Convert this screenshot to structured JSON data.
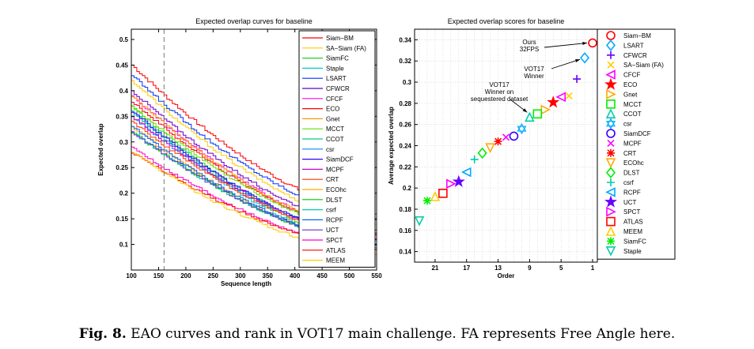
{
  "chart_data": [
    {
      "type": "line",
      "title": "Expected overlap curves for baseline",
      "xlabel": "Sequence length",
      "ylabel": "Expected overlap",
      "xlim": [
        100,
        550
      ],
      "ylim": [
        0.05,
        0.52
      ],
      "xticks": [
        100,
        150,
        200,
        250,
        300,
        350,
        400,
        450,
        500,
        550
      ],
      "yticks": [
        0.1,
        0.15,
        0.2,
        0.25,
        0.3,
        0.35,
        0.4,
        0.45,
        0.5
      ],
      "vline": 160,
      "legend_position": "top-right",
      "series": [
        {
          "name": "Siam−BM",
          "color": "#ff0000",
          "start": 0.45,
          "end": 0.16
        },
        {
          "name": "SA−Siam (FA)",
          "color": "#ffcc00",
          "start": 0.42,
          "end": 0.14
        },
        {
          "name": "SiamFC",
          "color": "#22cc22",
          "start": 0.37,
          "end": 0.1
        },
        {
          "name": "Staple",
          "color": "#00cccc",
          "start": 0.36,
          "end": 0.095
        },
        {
          "name": "LSART",
          "color": "#0033ff",
          "start": 0.43,
          "end": 0.15
        },
        {
          "name": "CFWCR",
          "color": "#6600cc",
          "start": 0.4,
          "end": 0.13
        },
        {
          "name": "CFCF",
          "color": "#ff00ff",
          "start": 0.39,
          "end": 0.12
        },
        {
          "name": "ECO",
          "color": "#ff0000",
          "start": 0.38,
          "end": 0.12
        },
        {
          "name": "Gnet",
          "color": "#ff9900",
          "start": 0.39,
          "end": 0.12
        },
        {
          "name": "MCCT",
          "color": "#66dd00",
          "start": 0.37,
          "end": 0.12
        },
        {
          "name": "CCOT",
          "color": "#00cc88",
          "start": 0.36,
          "end": 0.11
        },
        {
          "name": "csr",
          "color": "#0088ff",
          "start": 0.35,
          "end": 0.11
        },
        {
          "name": "SiamDCF",
          "color": "#3300ff",
          "start": 0.36,
          "end": 0.11
        },
        {
          "name": "MCPF",
          "color": "#cc00cc",
          "start": 0.35,
          "end": 0.11
        },
        {
          "name": "CRT",
          "color": "#ff3300",
          "start": 0.34,
          "end": 0.11
        },
        {
          "name": "ECOhc",
          "color": "#ffaa00",
          "start": 0.33,
          "end": 0.1
        },
        {
          "name": "DLST",
          "color": "#00cc00",
          "start": 0.32,
          "end": 0.1
        },
        {
          "name": "csrf",
          "color": "#00ccaa",
          "start": 0.32,
          "end": 0.1
        },
        {
          "name": "RCPF",
          "color": "#0066ff",
          "start": 0.33,
          "end": 0.1
        },
        {
          "name": "UCT",
          "color": "#6633cc",
          "start": 0.32,
          "end": 0.1
        },
        {
          "name": "SPCT",
          "color": "#ff00cc",
          "start": 0.29,
          "end": 0.09
        },
        {
          "name": "ATLAS",
          "color": "#ff0000",
          "start": 0.28,
          "end": 0.09
        },
        {
          "name": "MEEM",
          "color": "#ffcc00",
          "start": 0.28,
          "end": 0.08
        }
      ]
    },
    {
      "type": "scatter",
      "title": "Expected overlap scores for baseline",
      "xlabel": "Order",
      "ylabel": "Average expected overlap",
      "ylim": [
        0.13,
        0.35
      ],
      "xticks": [
        21,
        17,
        13,
        9,
        5,
        1
      ],
      "yticks": [
        0.14,
        0.16,
        0.18,
        0.2,
        0.22,
        0.24,
        0.26,
        0.28,
        0.3,
        0.32,
        0.34
      ],
      "legend_position": "right",
      "annotations": [
        {
          "text": "Ours\n32FPS",
          "order": 1
        },
        {
          "text": "VOT17\nWinner",
          "order": 2
        },
        {
          "text": "VOT17\nWinner on\nsequestered dataset",
          "order": 9
        }
      ],
      "points": [
        {
          "order": 1,
          "name": "Siam−BM",
          "value": 0.337,
          "marker": "circle",
          "color": "#ff0000"
        },
        {
          "order": 2,
          "name": "LSART",
          "value": 0.323,
          "marker": "diamond",
          "color": "#00aaff"
        },
        {
          "order": 3,
          "name": "CFWCR",
          "value": 0.303,
          "marker": "plus",
          "color": "#6600ff"
        },
        {
          "order": 4,
          "name": "SA−Siam (FA)",
          "value": 0.287,
          "marker": "x",
          "color": "#ffcc00"
        },
        {
          "order": 5,
          "name": "CFCF",
          "value": 0.286,
          "marker": "tri-left",
          "color": "#ff00ff"
        },
        {
          "order": 6,
          "name": "ECO",
          "value": 0.281,
          "marker": "star",
          "color": "#ff0000"
        },
        {
          "order": 7,
          "name": "Gnet",
          "value": 0.274,
          "marker": "tri-right",
          "color": "#ffaa00"
        },
        {
          "order": 8,
          "name": "MCCT",
          "value": 0.27,
          "marker": "square",
          "color": "#00ee00"
        },
        {
          "order": 9,
          "name": "CCOT",
          "value": 0.267,
          "marker": "tri-up",
          "color": "#00ccaa"
        },
        {
          "order": 10,
          "name": "csr",
          "value": 0.256,
          "marker": "hexagram",
          "color": "#00aaff"
        },
        {
          "order": 11,
          "name": "SiamDCF",
          "value": 0.249,
          "marker": "circle",
          "color": "#3300ff"
        },
        {
          "order": 12,
          "name": "MCPF",
          "value": 0.248,
          "marker": "x",
          "color": "#ff00ff"
        },
        {
          "order": 13,
          "name": "CRT",
          "value": 0.244,
          "marker": "asterisk",
          "color": "#ff0000"
        },
        {
          "order": 14,
          "name": "ECOhc",
          "value": 0.238,
          "marker": "tri-down",
          "color": "#ffaa00"
        },
        {
          "order": 15,
          "name": "DLST",
          "value": 0.233,
          "marker": "diamond",
          "color": "#00ee00"
        },
        {
          "order": 16,
          "name": "csrf",
          "value": 0.227,
          "marker": "plus",
          "color": "#00ccaa"
        },
        {
          "order": 17,
          "name": "RCPF",
          "value": 0.215,
          "marker": "tri-left",
          "color": "#00aaff"
        },
        {
          "order": 18,
          "name": "UCT",
          "value": 0.206,
          "marker": "star",
          "color": "#6600ff"
        },
        {
          "order": 19,
          "name": "SPCT",
          "value": 0.204,
          "marker": "tri-right",
          "color": "#ff00ff"
        },
        {
          "order": 20,
          "name": "ATLAS",
          "value": 0.195,
          "marker": "square",
          "color": "#ff0000"
        },
        {
          "order": 21,
          "name": "MEEM",
          "value": 0.192,
          "marker": "tri-up",
          "color": "#ffcc00"
        },
        {
          "order": 22,
          "name": "SiamFC",
          "value": 0.188,
          "marker": "asterisk",
          "color": "#00ee00"
        },
        {
          "order": 23,
          "name": "Staple",
          "value": 0.169,
          "marker": "tri-down",
          "color": "#00ccaa"
        }
      ]
    }
  ],
  "caption": {
    "label": "Fig. 8.",
    "text": " EAO curves and rank in VOT17 main challenge. FA represents Free Angle here."
  }
}
